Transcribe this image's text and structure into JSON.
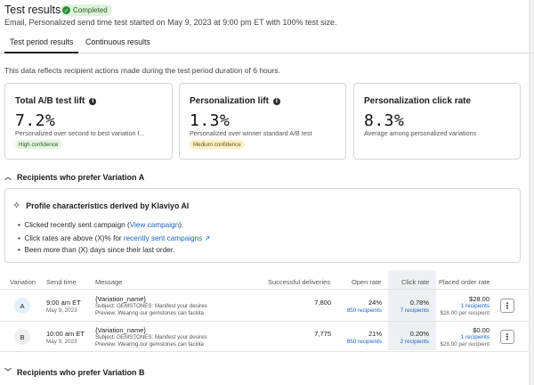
{
  "header": {
    "title": "Test results",
    "status": "Completed",
    "subtitle": "Email, Personalized send time test started on May 9, 2023 at 9:00 pm ET with 100% test size."
  },
  "tabs": [
    {
      "label": "Test period results",
      "active": true
    },
    {
      "label": "Continuous results",
      "active": false
    }
  ],
  "note": "This data reflects recipient actions made during the test period duration of 6 hours.",
  "cards": [
    {
      "title": "Total A/B test lift",
      "value": "7.2%",
      "desc": "Personalized over second to best variation f...",
      "pill": "High confidence"
    },
    {
      "title": "Personalization lift",
      "value": "1.3%",
      "desc": "Personalized over winner standard A/B test",
      "pill": "Medium confidence"
    },
    {
      "title": "Personalization click rate",
      "value": "8.3%",
      "desc": "Average among personalized variations",
      "pill": ""
    }
  ],
  "sectionA": "Recipients who prefer Variation A",
  "sectionB": "Recipients who prefer Variation B",
  "ai": {
    "title": "Profile characteristics derived by Klaviyo AI",
    "b1_pre": "Clicked recently sent campaign (",
    "b1_link": "View campaign",
    "b1_post": ").",
    "b2_pre": "Click rates are above (X)% for ",
    "b2_link": "recently sent campaigns",
    "b3": "Been more than (X) days since their last order."
  },
  "table": {
    "headers": [
      "Variation",
      "Send time",
      "Message",
      "Successful deliveries",
      "Open rate",
      "Click rate",
      "Placed order rate"
    ],
    "rows": [
      {
        "variation": "A",
        "time": "9:00 am ET",
        "date": "May 9, 2023",
        "name": "{Variation_name}",
        "subject": "Subject: GEMSTONES: Manifest your desires",
        "preview": "Preview: Wearing our gemstones can facilita",
        "deliveries": "7,800",
        "open": "24%",
        "open_recip": "850 recipients",
        "click": "0.78%",
        "click_recip": "7 recipients",
        "order": "$28.00",
        "order_recip": "1 recipients",
        "order_per": "$28.00 per recipient"
      },
      {
        "variation": "B",
        "time": "10:00 am ET",
        "date": "May 9, 2023",
        "name": "{Variation_name}",
        "subject": "Subject: GEMSTONES: Manifest your desires",
        "preview": "Preview: Wearing our gemstones can facilita",
        "deliveries": "7,775",
        "open": "21%",
        "open_recip": "850 recipients",
        "click": "0.20%",
        "click_recip": "2 recipients",
        "order": "$0.00",
        "order_recip": "1 recipients",
        "order_per": "$28.00 per recipient"
      }
    ]
  },
  "colors": {
    "accent": "#1b63c6",
    "success": "#2e8b3a",
    "varA": "#e3f0fb",
    "varB": "#eeeeee"
  }
}
